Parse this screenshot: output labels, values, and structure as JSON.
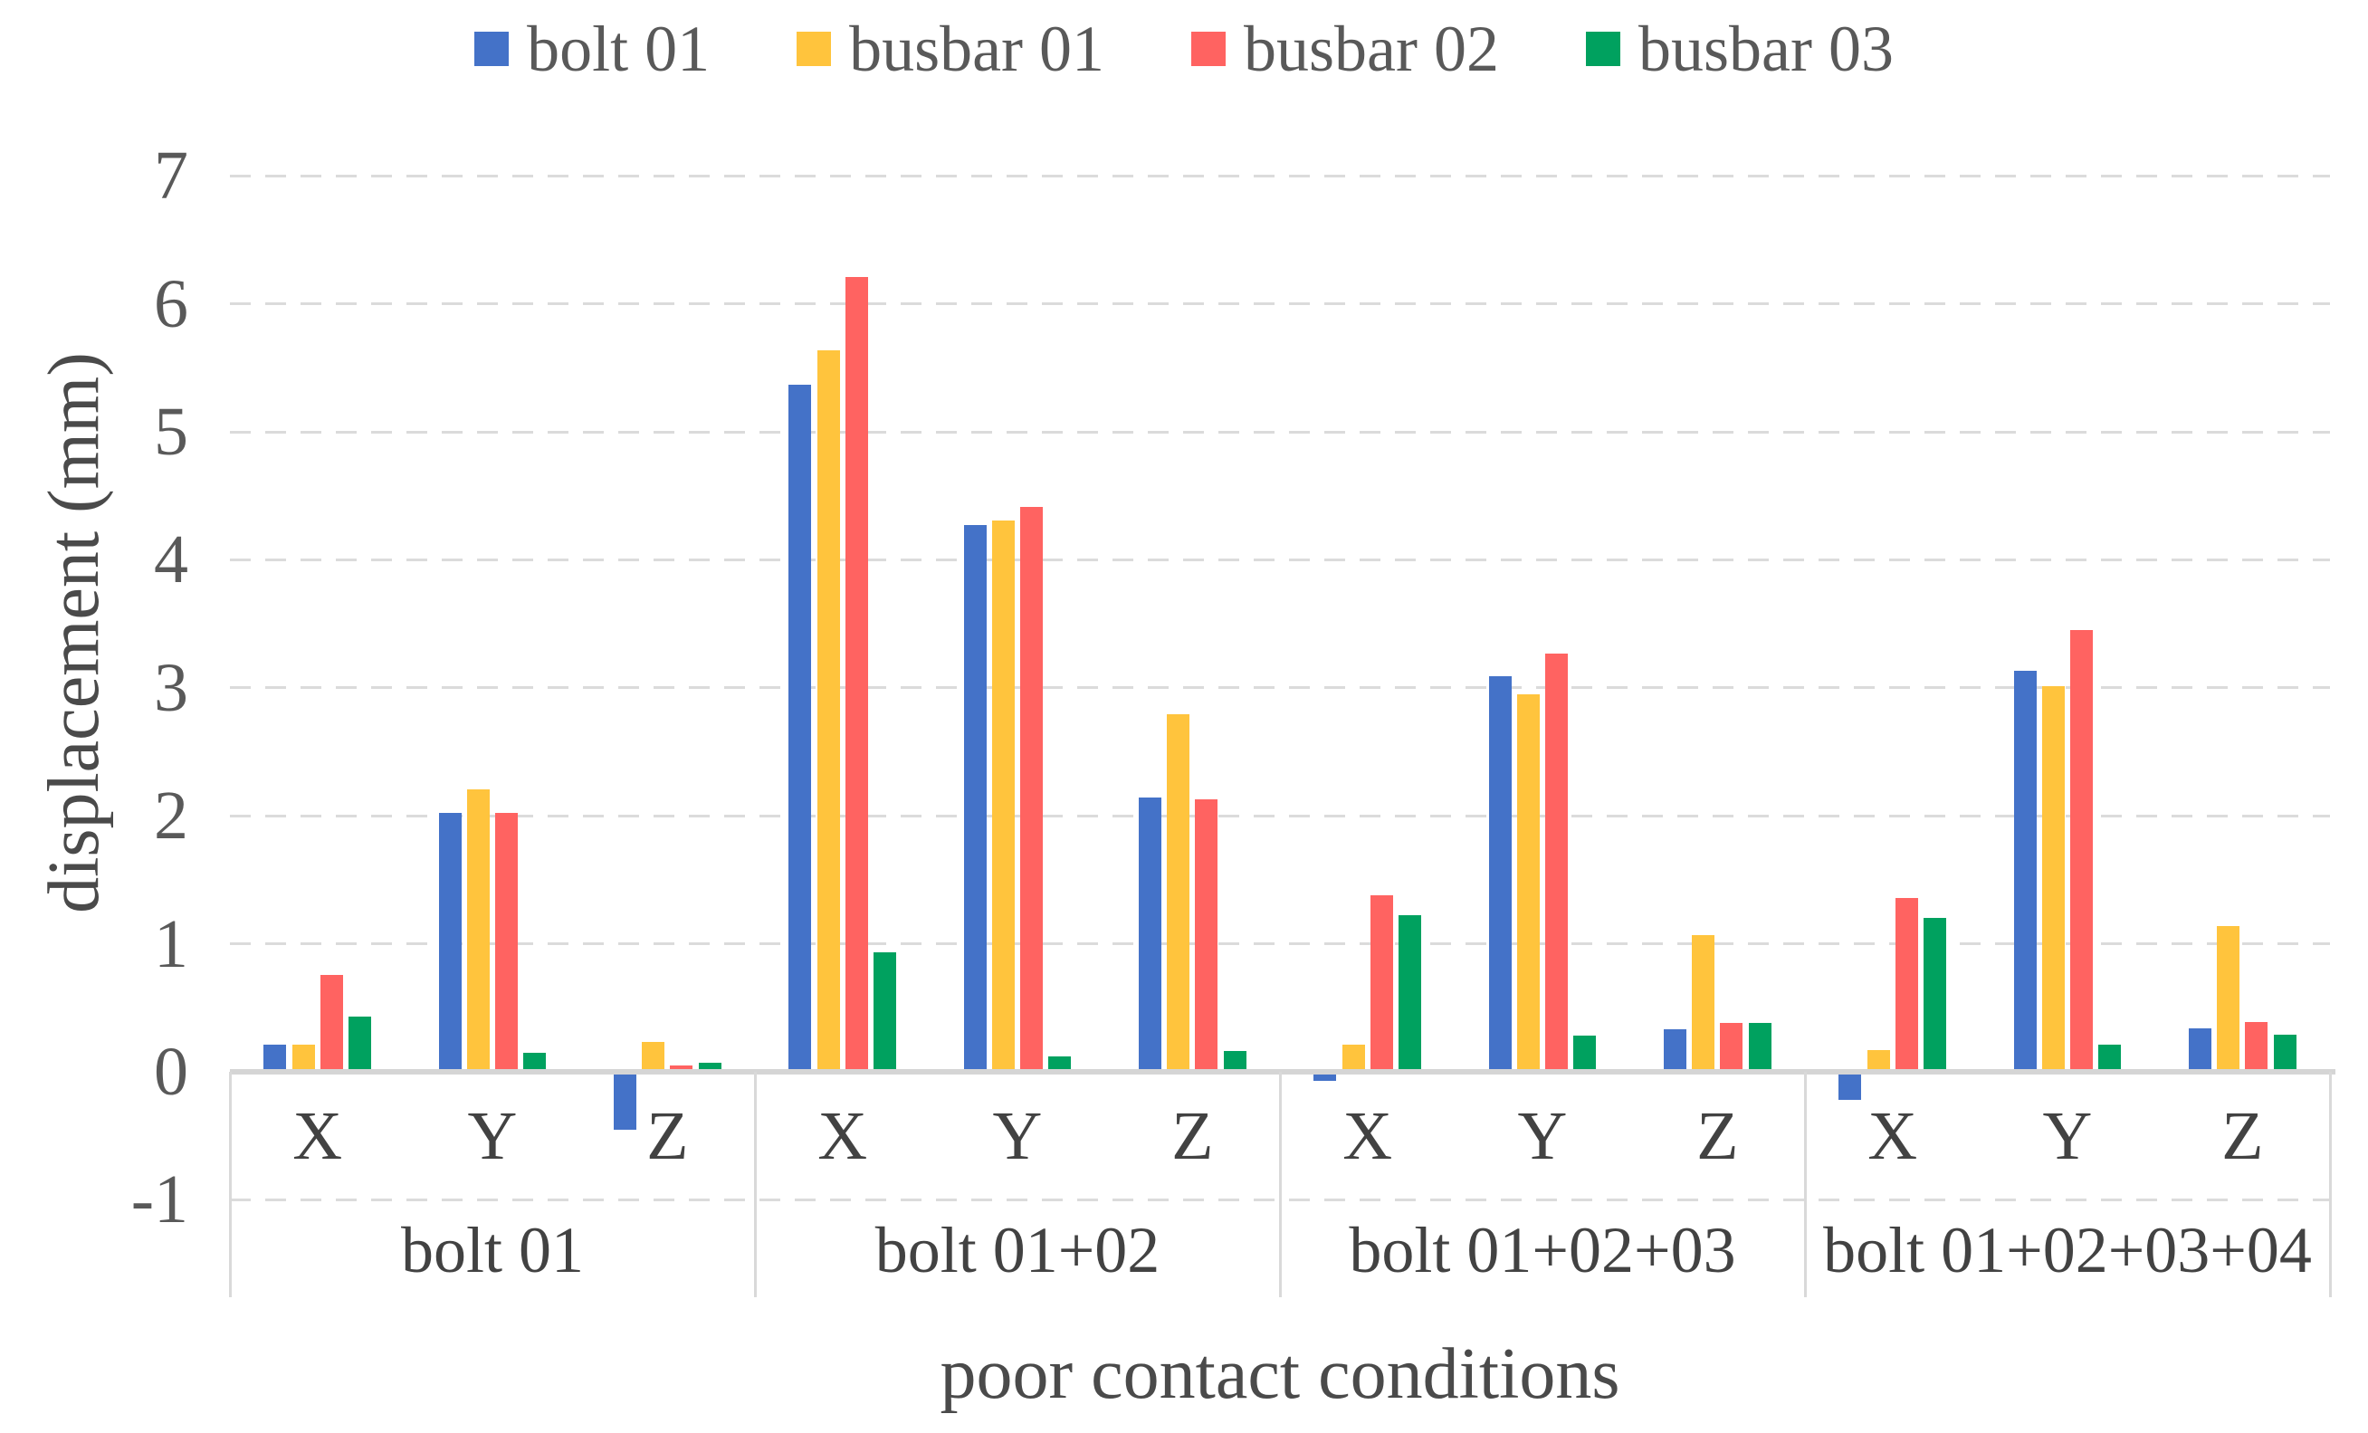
{
  "chart_data": {
    "type": "bar",
    "title": "",
    "xlabel": "poor contact conditions",
    "ylabel": "displacement (mm)",
    "ylim": [
      -1,
      7
    ],
    "yticks": [
      7,
      6,
      5,
      4,
      3,
      2,
      1,
      0,
      -1
    ],
    "grid": "horizontal dashed lines at each integer tick",
    "legend_position": "top-center",
    "groups": [
      "bolt 01",
      "bolt 01+02",
      "bolt 01+02+03",
      "bolt 01+02+03+04"
    ],
    "axes_per_group": [
      "X",
      "Y",
      "Z"
    ],
    "series": [
      {
        "name": "bolt 01",
        "color": "#4472C8",
        "values": [
          [
            0.21,
            2.02,
            -0.45
          ],
          [
            5.37,
            4.27,
            2.14
          ],
          [
            -0.07,
            3.09,
            0.33
          ],
          [
            -0.22,
            3.13,
            0.34
          ]
        ]
      },
      {
        "name": "busbar 01",
        "color": "#FFC43D",
        "values": [
          [
            0.21,
            2.21,
            0.23
          ],
          [
            5.64,
            4.31,
            2.79
          ],
          [
            0.21,
            2.95,
            1.07
          ],
          [
            0.17,
            3.01,
            1.14
          ]
        ]
      },
      {
        "name": "busbar 02",
        "color": "#FF6361",
        "values": [
          [
            0.76,
            2.02,
            0.05
          ],
          [
            6.21,
            4.41,
            2.13
          ],
          [
            1.38,
            3.27,
            0.38
          ],
          [
            1.36,
            3.45,
            0.39
          ]
        ]
      },
      {
        "name": "busbar 03",
        "color": "#00A15F",
        "values": [
          [
            0.43,
            0.15,
            0.07
          ],
          [
            0.93,
            0.12,
            0.16
          ],
          [
            1.22,
            0.28,
            0.38
          ],
          [
            1.2,
            0.21,
            0.29
          ]
        ]
      }
    ],
    "colors": {
      "grid": "#dbdbdb",
      "zero_line": "#d5d5d5",
      "table_border": "#d9d9d9",
      "tick_text": "#595959",
      "label_text": "#424242"
    }
  }
}
